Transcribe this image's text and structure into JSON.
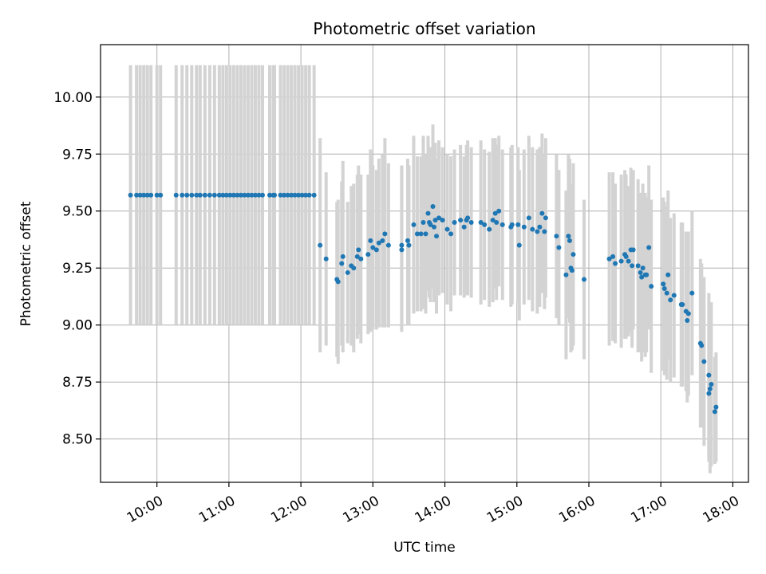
{
  "chart_data": {
    "type": "scatter",
    "title": "Photometric offset variation",
    "xlabel": "UTC time",
    "ylabel": "Photometric offset",
    "x_unit": "UTC hours",
    "xlim": [
      "09:13",
      "18:13"
    ],
    "ylim": [
      8.31,
      10.23
    ],
    "xticks": [
      "10:00",
      "11:00",
      "12:00",
      "13:00",
      "14:00",
      "15:00",
      "16:00",
      "17:00",
      "18:00"
    ],
    "yticks": [
      "8.50",
      "8.75",
      "9.00",
      "9.25",
      "9.50",
      "9.75",
      "10.00"
    ],
    "grid": true,
    "legend": "none",
    "colors": {
      "points": "#1f77b4",
      "error_bars": "#d3d3d3",
      "grid": "#b0b0b0"
    },
    "series": [
      {
        "marker": "point",
        "error_bars": true,
        "points": [
          {
            "x": "09:38",
            "y": 9.57,
            "lo": 9.0,
            "hi": 10.14
          },
          {
            "x": "09:43",
            "y": 9.57,
            "lo": 9.0,
            "hi": 10.14
          },
          {
            "x": "09:46",
            "y": 9.57,
            "lo": 9.0,
            "hi": 10.14
          },
          {
            "x": "09:49",
            "y": 9.57,
            "lo": 9.0,
            "hi": 10.14
          },
          {
            "x": "09:52",
            "y": 9.57,
            "lo": 9.0,
            "hi": 10.14
          },
          {
            "x": "09:55",
            "y": 9.57,
            "lo": 9.0,
            "hi": 10.14
          },
          {
            "x": "10:00",
            "y": 9.57,
            "lo": 9.0,
            "hi": 10.14
          },
          {
            "x": "10:03",
            "y": 9.57,
            "lo": 9.0,
            "hi": 10.14
          },
          {
            "x": "10:16",
            "y": 9.57,
            "lo": 9.0,
            "hi": 10.14
          },
          {
            "x": "10:21",
            "y": 9.57,
            "lo": 9.0,
            "hi": 10.14
          },
          {
            "x": "10:25",
            "y": 9.57,
            "lo": 9.0,
            "hi": 10.14
          },
          {
            "x": "10:29",
            "y": 9.57,
            "lo": 9.0,
            "hi": 10.14
          },
          {
            "x": "10:33",
            "y": 9.57,
            "lo": 9.0,
            "hi": 10.14
          },
          {
            "x": "10:36",
            "y": 9.57,
            "lo": 9.0,
            "hi": 10.14
          },
          {
            "x": "10:40",
            "y": 9.57,
            "lo": 9.0,
            "hi": 10.14
          },
          {
            "x": "10:44",
            "y": 9.57,
            "lo": 9.0,
            "hi": 10.14
          },
          {
            "x": "10:48",
            "y": 9.57,
            "lo": 9.0,
            "hi": 10.14
          },
          {
            "x": "10:52",
            "y": 9.57,
            "lo": 9.0,
            "hi": 10.14
          },
          {
            "x": "10:55",
            "y": 9.57,
            "lo": 9.0,
            "hi": 10.14
          },
          {
            "x": "10:58",
            "y": 9.57,
            "lo": 9.0,
            "hi": 10.14
          },
          {
            "x": "11:01",
            "y": 9.57,
            "lo": 9.0,
            "hi": 10.14
          },
          {
            "x": "11:04",
            "y": 9.57,
            "lo": 9.0,
            "hi": 10.14
          },
          {
            "x": "11:07",
            "y": 9.57,
            "lo": 9.0,
            "hi": 10.14
          },
          {
            "x": "11:10",
            "y": 9.57,
            "lo": 9.0,
            "hi": 10.14
          },
          {
            "x": "11:13",
            "y": 9.57,
            "lo": 9.0,
            "hi": 10.14
          },
          {
            "x": "11:16",
            "y": 9.57,
            "lo": 9.0,
            "hi": 10.14
          },
          {
            "x": "11:19",
            "y": 9.57,
            "lo": 9.0,
            "hi": 10.14
          },
          {
            "x": "11:22",
            "y": 9.57,
            "lo": 9.0,
            "hi": 10.14
          },
          {
            "x": "11:25",
            "y": 9.57,
            "lo": 9.0,
            "hi": 10.14
          },
          {
            "x": "11:28",
            "y": 9.57,
            "lo": 9.0,
            "hi": 10.14
          },
          {
            "x": "11:34",
            "y": 9.57,
            "lo": 9.0,
            "hi": 10.14
          },
          {
            "x": "11:37",
            "y": 9.57,
            "lo": 9.0,
            "hi": 10.14
          },
          {
            "x": "11:38",
            "y": 9.57,
            "lo": 9.0,
            "hi": 10.14
          },
          {
            "x": "11:43",
            "y": 9.57,
            "lo": 9.0,
            "hi": 10.14
          },
          {
            "x": "11:46",
            "y": 9.57,
            "lo": 9.0,
            "hi": 10.14
          },
          {
            "x": "11:49",
            "y": 9.57,
            "lo": 9.0,
            "hi": 10.14
          },
          {
            "x": "11:52",
            "y": 9.57,
            "lo": 9.0,
            "hi": 10.14
          },
          {
            "x": "11:55",
            "y": 9.57,
            "lo": 9.0,
            "hi": 10.14
          },
          {
            "x": "11:58",
            "y": 9.57,
            "lo": 9.0,
            "hi": 10.14
          },
          {
            "x": "12:01",
            "y": 9.57,
            "lo": 9.0,
            "hi": 10.14
          },
          {
            "x": "12:04",
            "y": 9.57,
            "lo": 9.0,
            "hi": 10.14
          },
          {
            "x": "12:07",
            "y": 9.57,
            "lo": 9.0,
            "hi": 10.14
          },
          {
            "x": "12:11",
            "y": 9.57,
            "lo": 9.0,
            "hi": 10.14
          },
          {
            "x": "12:16",
            "y": 9.35,
            "lo": 8.88,
            "hi": 9.82
          },
          {
            "x": "12:21",
            "y": 9.29,
            "lo": 8.91,
            "hi": 9.67
          },
          {
            "x": "12:30",
            "y": 9.2,
            "lo": 8.86,
            "hi": 9.54
          },
          {
            "x": "12:31",
            "y": 9.19,
            "lo": 8.83,
            "hi": 9.55
          },
          {
            "x": "12:34",
            "y": 9.27,
            "lo": 8.91,
            "hi": 9.63
          },
          {
            "x": "12:35",
            "y": 9.3,
            "lo": 8.88,
            "hi": 9.72
          },
          {
            "x": "12:39",
            "y": 9.23,
            "lo": 8.92,
            "hi": 9.54
          },
          {
            "x": "12:42",
            "y": 9.26,
            "lo": 8.91,
            "hi": 9.61
          },
          {
            "x": "12:44",
            "y": 9.25,
            "lo": 8.88,
            "hi": 9.62
          },
          {
            "x": "12:47",
            "y": 9.3,
            "lo": 8.94,
            "hi": 9.66
          },
          {
            "x": "12:48",
            "y": 9.33,
            "lo": 8.96,
            "hi": 9.7
          },
          {
            "x": "12:50",
            "y": 9.29,
            "lo": 8.92,
            "hi": 9.66
          },
          {
            "x": "12:56",
            "y": 9.31,
            "lo": 8.96,
            "hi": 9.66
          },
          {
            "x": "12:58",
            "y": 9.37,
            "lo": 8.97,
            "hi": 9.77
          },
          {
            "x": "13:00",
            "y": 9.34,
            "lo": 8.98,
            "hi": 9.7
          },
          {
            "x": "13:03",
            "y": 9.33,
            "lo": 8.98,
            "hi": 9.68
          },
          {
            "x": "13:05",
            "y": 9.36,
            "lo": 8.99,
            "hi": 9.73
          },
          {
            "x": "13:08",
            "y": 9.37,
            "lo": 8.99,
            "hi": 9.75
          },
          {
            "x": "13:10",
            "y": 9.4,
            "lo": 8.99,
            "hi": 9.82
          },
          {
            "x": "13:13",
            "y": 9.35,
            "lo": 8.99,
            "hi": 9.71
          },
          {
            "x": "13:24",
            "y": 9.33,
            "lo": 8.97,
            "hi": 9.69
          },
          {
            "x": "13:24",
            "y": 9.35,
            "lo": 9.0,
            "hi": 9.7
          },
          {
            "x": "13:29",
            "y": 9.37,
            "lo": 9.0,
            "hi": 9.73
          },
          {
            "x": "13:30",
            "y": 9.35,
            "lo": 9.0,
            "hi": 9.7
          },
          {
            "x": "13:34",
            "y": 9.44,
            "lo": 9.05,
            "hi": 9.83
          },
          {
            "x": "13:37",
            "y": 9.4,
            "lo": 9.06,
            "hi": 9.74
          },
          {
            "x": "13:40",
            "y": 9.4,
            "lo": 9.06,
            "hi": 9.74
          },
          {
            "x": "13:42",
            "y": 9.45,
            "lo": 9.07,
            "hi": 9.83
          },
          {
            "x": "13:44",
            "y": 9.4,
            "lo": 9.05,
            "hi": 9.75
          },
          {
            "x": "13:46",
            "y": 9.49,
            "lo": 9.15,
            "hi": 9.83
          },
          {
            "x": "13:47",
            "y": 9.45,
            "lo": 9.12,
            "hi": 9.78
          },
          {
            "x": "13:48",
            "y": 9.44,
            "lo": 9.1,
            "hi": 9.78
          },
          {
            "x": "13:50",
            "y": 9.52,
            "lo": 9.16,
            "hi": 9.88
          },
          {
            "x": "13:51",
            "y": 9.43,
            "lo": 9.1,
            "hi": 9.76
          },
          {
            "x": "13:52",
            "y": 9.46,
            "lo": 9.12,
            "hi": 9.8
          },
          {
            "x": "13:53",
            "y": 9.39,
            "lo": 9.05,
            "hi": 9.73
          },
          {
            "x": "13:55",
            "y": 9.47,
            "lo": 9.13,
            "hi": 9.81
          },
          {
            "x": "13:58",
            "y": 9.46,
            "lo": 9.14,
            "hi": 9.78
          },
          {
            "x": "14:02",
            "y": 9.42,
            "lo": 9.09,
            "hi": 9.75
          },
          {
            "x": "14:05",
            "y": 9.4,
            "lo": 9.06,
            "hi": 9.74
          },
          {
            "x": "14:08",
            "y": 9.45,
            "lo": 9.13,
            "hi": 9.77
          },
          {
            "x": "14:13",
            "y": 9.46,
            "lo": 9.13,
            "hi": 9.79
          },
          {
            "x": "14:16",
            "y": 9.43,
            "lo": 9.12,
            "hi": 9.74
          },
          {
            "x": "14:18",
            "y": 9.46,
            "lo": 9.13,
            "hi": 9.79
          },
          {
            "x": "14:19",
            "y": 9.47,
            "lo": 9.13,
            "hi": 9.81
          },
          {
            "x": "14:22",
            "y": 9.45,
            "lo": 9.12,
            "hi": 9.78
          },
          {
            "x": "14:30",
            "y": 9.45,
            "lo": 9.09,
            "hi": 9.81
          },
          {
            "x": "14:33",
            "y": 9.44,
            "lo": 9.11,
            "hi": 9.77
          },
          {
            "x": "14:37",
            "y": 9.42,
            "lo": 9.08,
            "hi": 9.76
          },
          {
            "x": "14:40",
            "y": 9.46,
            "lo": 9.1,
            "hi": 9.82
          },
          {
            "x": "14:42",
            "y": 9.49,
            "lo": 9.16,
            "hi": 9.82
          },
          {
            "x": "14:43",
            "y": 9.45,
            "lo": 9.11,
            "hi": 9.79
          },
          {
            "x": "14:45",
            "y": 9.5,
            "lo": 9.17,
            "hi": 9.83
          },
          {
            "x": "14:48",
            "y": 9.44,
            "lo": 9.11,
            "hi": 9.77
          },
          {
            "x": "14:55",
            "y": 9.43,
            "lo": 9.08,
            "hi": 9.78
          },
          {
            "x": "14:56",
            "y": 9.44,
            "lo": 9.09,
            "hi": 9.79
          },
          {
            "x": "15:01",
            "y": 9.44,
            "lo": 9.1,
            "hi": 9.78
          },
          {
            "x": "15:02",
            "y": 9.35,
            "lo": 9.02,
            "hi": 9.68
          },
          {
            "x": "15:06",
            "y": 9.43,
            "lo": 9.09,
            "hi": 9.77
          },
          {
            "x": "15:10",
            "y": 9.47,
            "lo": 9.11,
            "hi": 9.83
          },
          {
            "x": "15:13",
            "y": 9.42,
            "lo": 9.06,
            "hi": 9.78
          },
          {
            "x": "15:17",
            "y": 9.41,
            "lo": 9.05,
            "hi": 9.77
          },
          {
            "x": "15:19",
            "y": 9.43,
            "lo": 9.08,
            "hi": 9.78
          },
          {
            "x": "15:21",
            "y": 9.49,
            "lo": 9.14,
            "hi": 9.84
          },
          {
            "x": "15:23",
            "y": 9.41,
            "lo": 9.07,
            "hi": 9.75
          },
          {
            "x": "15:24",
            "y": 9.47,
            "lo": 9.12,
            "hi": 9.82
          },
          {
            "x": "15:33",
            "y": 9.39,
            "lo": 9.03,
            "hi": 9.75
          },
          {
            "x": "15:35",
            "y": 9.34,
            "lo": 9.0,
            "hi": 9.68
          },
          {
            "x": "15:41",
            "y": 9.22,
            "lo": 8.85,
            "hi": 9.59
          },
          {
            "x": "15:43",
            "y": 9.39,
            "lo": 9.03,
            "hi": 9.75
          },
          {
            "x": "15:44",
            "y": 9.37,
            "lo": 9.01,
            "hi": 9.73
          },
          {
            "x": "15:45",
            "y": 9.25,
            "lo": 8.88,
            "hi": 9.62
          },
          {
            "x": "15:46",
            "y": 9.24,
            "lo": 8.89,
            "hi": 9.59
          },
          {
            "x": "15:47",
            "y": 9.31,
            "lo": 8.91,
            "hi": 9.71
          },
          {
            "x": "15:56",
            "y": 9.2,
            "lo": 8.85,
            "hi": 9.55
          },
          {
            "x": "16:17",
            "y": 9.29,
            "lo": 8.91,
            "hi": 9.67
          },
          {
            "x": "16:20",
            "y": 9.3,
            "lo": 8.93,
            "hi": 9.67
          },
          {
            "x": "16:22",
            "y": 9.27,
            "lo": 8.92,
            "hi": 9.62
          },
          {
            "x": "16:27",
            "y": 9.28,
            "lo": 8.9,
            "hi": 9.66
          },
          {
            "x": "16:30",
            "y": 9.31,
            "lo": 8.94,
            "hi": 9.68
          },
          {
            "x": "16:31",
            "y": 9.3,
            "lo": 8.94,
            "hi": 9.66
          },
          {
            "x": "16:33",
            "y": 9.28,
            "lo": 8.95,
            "hi": 9.61
          },
          {
            "x": "16:35",
            "y": 9.33,
            "lo": 8.97,
            "hi": 9.69
          },
          {
            "x": "16:36",
            "y": 9.26,
            "lo": 8.9,
            "hi": 9.62
          },
          {
            "x": "16:37",
            "y": 9.33,
            "lo": 8.98,
            "hi": 9.68
          },
          {
            "x": "16:41",
            "y": 9.26,
            "lo": 8.88,
            "hi": 9.64
          },
          {
            "x": "16:43",
            "y": 9.23,
            "lo": 8.88,
            "hi": 9.58
          },
          {
            "x": "16:44",
            "y": 9.21,
            "lo": 8.84,
            "hi": 9.58
          },
          {
            "x": "16:45",
            "y": 9.25,
            "lo": 8.88,
            "hi": 9.62
          },
          {
            "x": "16:47",
            "y": 9.22,
            "lo": 8.86,
            "hi": 9.58
          },
          {
            "x": "16:48",
            "y": 9.22,
            "lo": 8.88,
            "hi": 9.56
          },
          {
            "x": "16:50",
            "y": 9.34,
            "lo": 8.98,
            "hi": 9.7
          },
          {
            "x": "16:52",
            "y": 9.17,
            "lo": 8.79,
            "hi": 9.55
          },
          {
            "x": "17:02",
            "y": 9.18,
            "lo": 8.8,
            "hi": 9.56
          },
          {
            "x": "17:03",
            "y": 9.16,
            "lo": 8.78,
            "hi": 9.54
          },
          {
            "x": "17:05",
            "y": 9.14,
            "lo": 8.76,
            "hi": 9.52
          },
          {
            "x": "17:06",
            "y": 9.22,
            "lo": 8.85,
            "hi": 9.59
          },
          {
            "x": "17:08",
            "y": 9.11,
            "lo": 8.75,
            "hi": 9.47
          },
          {
            "x": "17:11",
            "y": 9.13,
            "lo": 8.77,
            "hi": 9.49
          },
          {
            "x": "17:17",
            "y": 9.09,
            "lo": 8.73,
            "hi": 9.45
          },
          {
            "x": "17:18",
            "y": 9.09,
            "lo": 8.73,
            "hi": 9.45
          },
          {
            "x": "17:21",
            "y": 9.06,
            "lo": 8.71,
            "hi": 9.41
          },
          {
            "x": "17:22",
            "y": 9.02,
            "lo": 8.66,
            "hi": 9.38
          },
          {
            "x": "17:23",
            "y": 9.05,
            "lo": 8.69,
            "hi": 9.41
          },
          {
            "x": "17:26",
            "y": 9.14,
            "lo": 8.78,
            "hi": 9.5
          },
          {
            "x": "17:33",
            "y": 8.92,
            "lo": 8.55,
            "hi": 9.29
          },
          {
            "x": "17:34",
            "y": 8.91,
            "lo": 8.55,
            "hi": 9.27
          },
          {
            "x": "17:36",
            "y": 8.84,
            "lo": 8.47,
            "hi": 9.21
          },
          {
            "x": "17:40",
            "y": 8.78,
            "lo": 8.42,
            "hi": 9.14
          },
          {
            "x": "17:41",
            "y": 8.72,
            "lo": 8.35,
            "hi": 9.09
          },
          {
            "x": "17:42",
            "y": 8.74,
            "lo": 8.38,
            "hi": 9.1
          },
          {
            "x": "17:45",
            "y": 8.62,
            "lo": 8.39,
            "hi": 8.86
          },
          {
            "x": "17:46",
            "y": 8.64,
            "lo": 8.4,
            "hi": 8.88
          },
          {
            "x": "17:40",
            "y": 8.7,
            "lo": 8.4,
            "hi": 8.98
          }
        ]
      }
    ]
  }
}
